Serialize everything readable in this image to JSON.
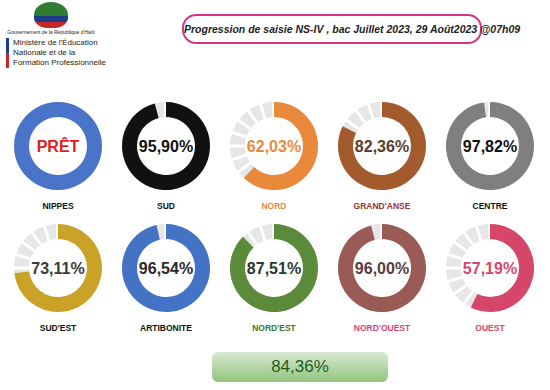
{
  "header": {
    "government": "Gouvernement de la République d'Haïti",
    "ministry": "Ministère de l'Éducation Nationale et de la Formation Professionnelle"
  },
  "title": "Progression de saisie NS-IV , bac Juillet 2023, 29 Août2023 @07h09",
  "chart_data": [
    {
      "type": "gauge",
      "title": "NIPPES",
      "values": [
        100
      ],
      "value_labels": [
        "PRÊT"
      ],
      "color": "#4a74c8",
      "ylim": [
        0,
        100
      ],
      "tick_labels": false
    },
    {
      "type": "gauge",
      "title": "SUD",
      "values": [
        95.9
      ],
      "value_labels": [
        "95,90%"
      ],
      "color": "#111111",
      "ylim": [
        0,
        100
      ],
      "tick_labels": false
    },
    {
      "type": "gauge",
      "title": "NORD",
      "values": [
        62.03
      ],
      "value_labels": [
        "62,03%"
      ],
      "color": "#e8893c",
      "ylim": [
        0,
        100
      ],
      "tick_labels": false
    },
    {
      "type": "gauge",
      "title": "GRAND'ANSE",
      "values": [
        82.36
      ],
      "value_labels": [
        "82,36%"
      ],
      "color": "#a35a2c",
      "ylim": [
        0,
        100
      ],
      "tick_labels": false
    },
    {
      "type": "gauge",
      "title": "CENTRE",
      "values": [
        97.82
      ],
      "value_labels": [
        "97,82%"
      ],
      "color": "#7f7f7f",
      "ylim": [
        0,
        100
      ],
      "tick_labels": false
    },
    {
      "type": "gauge",
      "title": "SUD'EST",
      "values": [
        73.11
      ],
      "value_labels": [
        "73,11%"
      ],
      "color": "#c9a227",
      "ylim": [
        0,
        100
      ],
      "tick_labels": false
    },
    {
      "type": "gauge",
      "title": "ARTIBONITE",
      "values": [
        96.54
      ],
      "value_labels": [
        "96,54%"
      ],
      "color": "#4472c4",
      "ylim": [
        0,
        100
      ],
      "tick_labels": false
    },
    {
      "type": "gauge",
      "title": "NORD'EST",
      "values": [
        87.51
      ],
      "value_labels": [
        "87,51%"
      ],
      "color": "#5b8a3a",
      "ylim": [
        0,
        100
      ],
      "tick_labels": false
    },
    {
      "type": "gauge",
      "title": "NORD'OUEST",
      "values": [
        96.0
      ],
      "value_labels": [
        "96,00%"
      ],
      "color": "#9a5a55",
      "ylim": [
        0,
        100
      ],
      "tick_labels": false
    },
    {
      "type": "gauge",
      "title": "OUEST",
      "values": [
        57.19
      ],
      "value_labels": [
        "57,19%"
      ],
      "color": "#d6456a",
      "ylim": [
        0,
        100
      ],
      "tick_labels": false
    }
  ],
  "total": "84,36%"
}
